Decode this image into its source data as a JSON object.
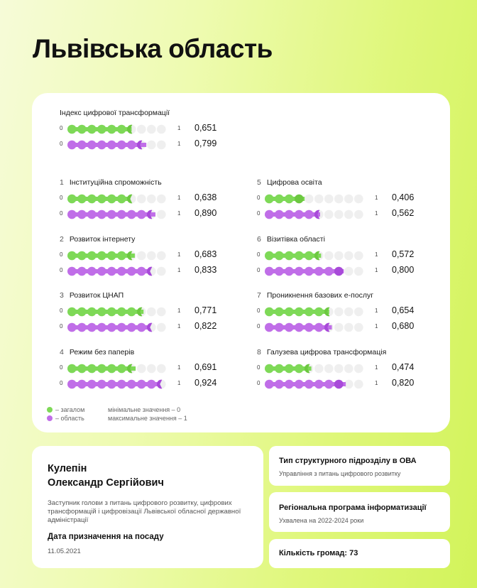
{
  "title": "Львівська область",
  "colors": {
    "green": "#7ed957",
    "green_head": "#6cc840",
    "purple": "#c06ee8",
    "purple_head": "#a84ad9",
    "empty": "#efefef"
  },
  "index": {
    "title": "Індекс цифрової трансформації",
    "general": "0,651",
    "region": "0,799",
    "general_fraction": 0.651,
    "region_fraction": 0.799
  },
  "scale": {
    "min_label": "0",
    "max_label": "1"
  },
  "categories": [
    {
      "num": "1",
      "name": "Інституційна спроможність",
      "general": "0,638",
      "region": "0,890",
      "general_fraction": 0.638,
      "region_fraction": 0.89
    },
    {
      "num": "2",
      "name": "Розвиток інтернету",
      "general": "0,683",
      "region": "0,833",
      "general_fraction": 0.683,
      "region_fraction": 0.833
    },
    {
      "num": "3",
      "name": "Розвиток ЦНАП",
      "general": "0,771",
      "region": "0,822",
      "general_fraction": 0.771,
      "region_fraction": 0.822
    },
    {
      "num": "4",
      "name": "Режим без паперів",
      "general": "0,691",
      "region": "0,924",
      "general_fraction": 0.691,
      "region_fraction": 0.924
    },
    {
      "num": "5",
      "name": "Цифрова освіта",
      "general": "0,406",
      "region": "0,562",
      "general_fraction": 0.406,
      "region_fraction": 0.562
    },
    {
      "num": "6",
      "name": "Візитівка області",
      "general": "0,572",
      "region": "0,800",
      "general_fraction": 0.572,
      "region_fraction": 0.8
    },
    {
      "num": "7",
      "name": "Проникнення базових е-послуг",
      "general": "0,654",
      "region": "0,680",
      "general_fraction": 0.654,
      "region_fraction": 0.68
    },
    {
      "num": "8",
      "name": "Галузева цифрова трансформація",
      "general": "0,474",
      "region": "0,820",
      "general_fraction": 0.474,
      "region_fraction": 0.82
    }
  ],
  "legend": {
    "general": "– загалом",
    "region": "– область",
    "min_note": "мінімальне значення – 0",
    "max_note": "максимальне значення – 1"
  },
  "person": {
    "surname": "Кулепін",
    "given_names": "Олександр Сергійович",
    "role": "Заступник голови з питань цифрового розвитку, цифрових трансформацій і цифровізації Львівської обласної державної адміністрації",
    "date_label": "Дата призначення на посаду",
    "date_value": "11.05.2021"
  },
  "info": [
    {
      "heading": "Тип структурного підрозділу в ОВА",
      "sub": "Управління з питань цифрового розвитку"
    },
    {
      "heading": "Регіональна програма інформатизації",
      "sub": "Ухвалена на 2022-2024 роки"
    },
    {
      "heading": "Кількість громад: 73"
    }
  ]
}
